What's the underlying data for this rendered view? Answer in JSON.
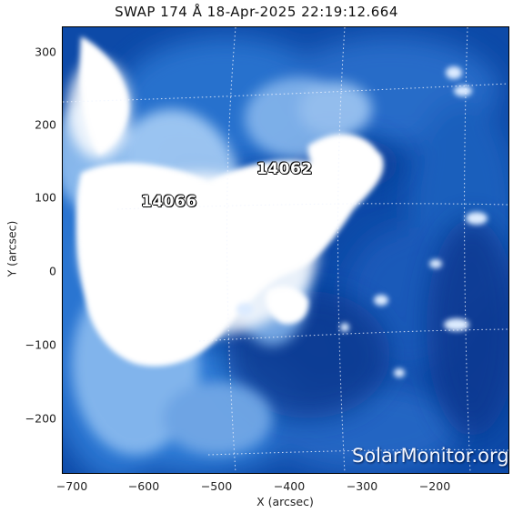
{
  "title": "SWAP 174 Å 18-Apr-2025 22:19:12.664",
  "axes": {
    "xlabel": "X (arcsec)",
    "ylabel": "Y (arcsec)",
    "x_ticks": [
      "−700",
      "−600",
      "−500",
      "−400",
      "−300",
      "−200"
    ],
    "y_ticks": [
      "300",
      "200",
      "100",
      "0",
      "−100",
      "−200"
    ]
  },
  "regions": [
    {
      "id": "14062",
      "label": "14062"
    },
    {
      "id": "14066",
      "label": "14066"
    }
  ],
  "watermark": "SolarMonitor.org",
  "colors": {
    "background": "#0b3f9c",
    "mid": "#2f78d4",
    "light": "#9cc5f2",
    "saturated": "#ffffff"
  }
}
